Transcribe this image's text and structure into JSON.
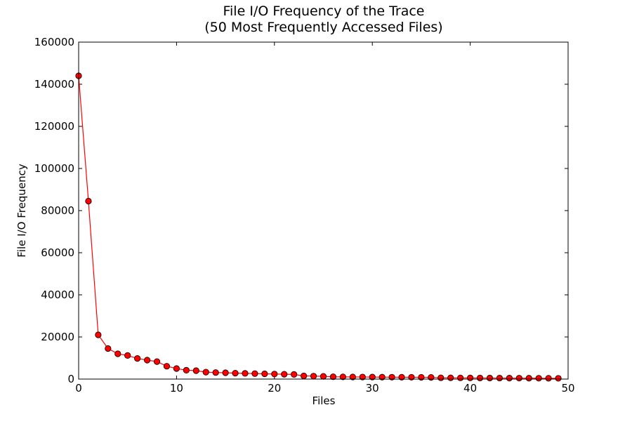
{
  "chart_data": {
    "type": "line",
    "title_lines": [
      "File I/O Frequency of the Trace",
      "(50 Most Frequently Accessed Files)"
    ],
    "xlabel": "Files",
    "ylabel": "File I/O Frequency",
    "xlim": [
      0,
      50
    ],
    "ylim": [
      0,
      160000
    ],
    "x_ticks": [
      0,
      10,
      20,
      30,
      40,
      50
    ],
    "y_ticks": [
      0,
      20000,
      40000,
      60000,
      80000,
      100000,
      120000,
      140000,
      160000
    ],
    "grid": false,
    "line_color": "#ff0000",
    "marker_color": "#ff0000",
    "marker_edge_color": "#000000",
    "series": [
      {
        "x": [
          0,
          1,
          2,
          3,
          4,
          5,
          6,
          7,
          8,
          9,
          10,
          11,
          12,
          13,
          14,
          15,
          16,
          17,
          18,
          19,
          20,
          21,
          22,
          23,
          24,
          25,
          26,
          27,
          28,
          29,
          30,
          31,
          32,
          33,
          34,
          35,
          36,
          37,
          38,
          39,
          40,
          41,
          42,
          43,
          44,
          45,
          46,
          47,
          48,
          49
        ],
        "values": [
          144000,
          84500,
          21000,
          14500,
          12000,
          11200,
          9800,
          9000,
          8300,
          6100,
          5000,
          4200,
          4000,
          3300,
          3100,
          3000,
          2800,
          2700,
          2600,
          2500,
          2400,
          2300,
          2200,
          1500,
          1400,
          1300,
          1100,
          1050,
          1000,
          980,
          950,
          920,
          900,
          880,
          860,
          840,
          800,
          600,
          580,
          560,
          540,
          520,
          500,
          480,
          460,
          440,
          420,
          400,
          380,
          360
        ]
      }
    ]
  }
}
